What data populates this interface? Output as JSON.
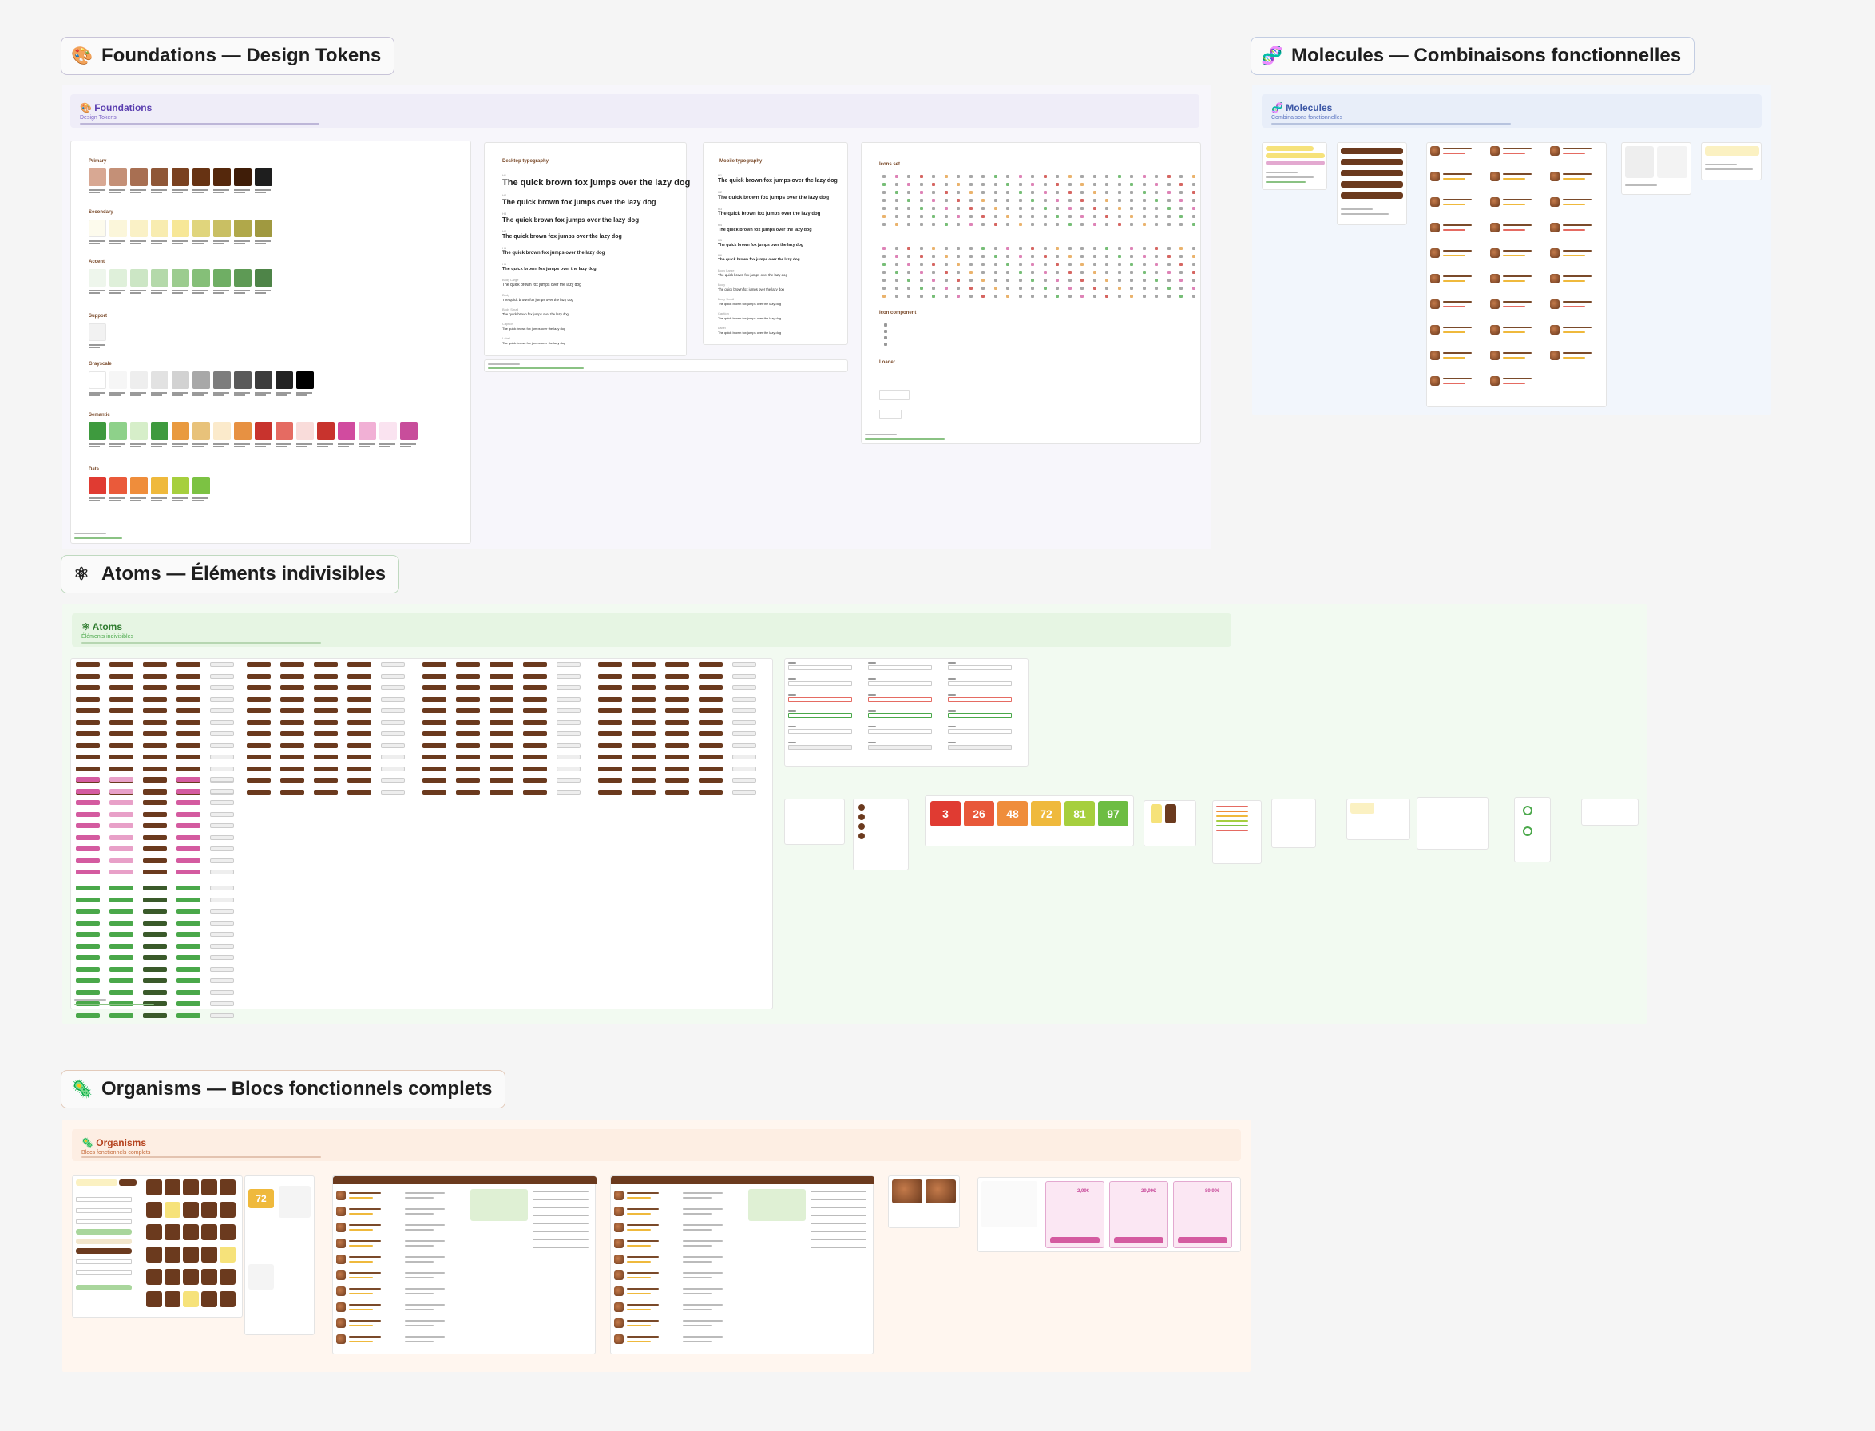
{
  "colors": {
    "brown_dark": "#5c2e10",
    "brown": "#7a4a2a",
    "pink": "#d45ba0",
    "green": "#4aa84a",
    "yellow": "#f6e27a"
  },
  "sections": {
    "foundations": {
      "emoji": "🎨",
      "title": "Foundations — Design Tokens"
    },
    "molecules": {
      "emoji": "🧬",
      "title": "Molecules — Combinaisons fonctionnelles"
    },
    "atoms": {
      "emoji": "⚛",
      "title": "Atoms — Éléments indivisibles"
    },
    "organisms": {
      "emoji": "🦠",
      "title": "Organisms — Blocs fonctionnels complets"
    }
  },
  "frames": {
    "foundations": {
      "emoji": "🎨",
      "heading": "Foundations",
      "subtitle": "Design Tokens"
    },
    "molecules": {
      "emoji": "🧬",
      "heading": "Molecules",
      "subtitle": "Combinaisons fonctionnelles"
    },
    "atoms": {
      "emoji": "⚛",
      "heading": "Atoms",
      "subtitle": "Éléments indivisibles"
    },
    "organisms": {
      "emoji": "🦠",
      "heading": "Organisms",
      "subtitle": "Blocs fonctionnels complets"
    }
  },
  "foundations": {
    "palette_groups": [
      {
        "label": "Primary",
        "swatches": [
          "#d8a893",
          "#c49077",
          "#a86f52",
          "#8f5737",
          "#7a4120",
          "#673313",
          "#55280c",
          "#3f1d08",
          "#1e1e1e"
        ]
      },
      {
        "label": "Secondary",
        "swatches": [
          "#fdfbed",
          "#fbf6da",
          "#faf1c6",
          "#f8ecb0",
          "#f7e797",
          "#e0d57c",
          "#c9bf63",
          "#b0a84a",
          "#a09940"
        ]
      },
      {
        "label": "Accent",
        "swatches": [
          "#eef6ec",
          "#dff0da",
          "#cce6c5",
          "#b4d9aa",
          "#9ccc8f",
          "#85bf78",
          "#6fae64",
          "#5e9a55",
          "#4e8448"
        ]
      },
      {
        "label": "Support",
        "swatches": [
          "#f2f2f2"
        ]
      },
      {
        "label": "Grayscale",
        "swatches": [
          "#ffffff",
          "#f6f6f6",
          "#eeeeee",
          "#e2e2e2",
          "#d2d2d2",
          "#a8a8a8",
          "#7d7d7d",
          "#5a5a5a",
          "#3c3c3c",
          "#222222",
          "#000000"
        ]
      },
      {
        "label": "Semantic",
        "swatches": [
          "#3e9a3e",
          "#8ed18a",
          "#d6eec9",
          "#3e9a3e",
          "#e99a3f",
          "#e8c27a",
          "#fbeacb",
          "#e79142",
          "#c8332d",
          "#e56b62",
          "#f9dcda",
          "#c8332d",
          "#d14b9f",
          "#f1b0d5",
          "#fae3f0",
          "#c84d9b"
        ]
      },
      {
        "label": "Data",
        "swatches": [
          "#e03b32",
          "#ea5a3a",
          "#ef8d3b",
          "#efb93c",
          "#a6cf3e",
          "#7cc243"
        ]
      }
    ],
    "desktop_typography": {
      "title": "Desktop typography",
      "sample": "The quick brown fox jumps over the lazy dog",
      "captions": [
        "H1",
        "H2",
        "H3",
        "H4",
        "H5",
        "H6",
        "Body Large",
        "Body",
        "Body Small",
        "Caption",
        "Label"
      ]
    },
    "mobile_typography": {
      "title": "Mobile typography",
      "sample": "The quick brown fox jumps over the lazy dog",
      "captions": [
        "H1",
        "H2",
        "H3",
        "H4",
        "H5",
        "H6",
        "Body Large",
        "Body",
        "Body Small",
        "Caption",
        "Label"
      ]
    },
    "icons": {
      "title": "Icons set",
      "component_title": "Icon component",
      "loader_title": "Loader"
    }
  },
  "atoms": {
    "stat_badges": [
      {
        "value": "3",
        "color": "#e03b32"
      },
      {
        "value": "26",
        "color": "#e8583a"
      },
      {
        "value": "48",
        "color": "#ef8d3b"
      },
      {
        "value": "72",
        "color": "#efb93c"
      },
      {
        "value": "81",
        "color": "#a6cf3e"
      },
      {
        "value": "97",
        "color": "#6dbd43"
      }
    ]
  },
  "organisms": {
    "score_card": {
      "value": "72"
    },
    "pricing_cards": [
      {
        "price": "2,99€"
      },
      {
        "price": "29,99€"
      },
      {
        "price": "89,99€"
      }
    ]
  }
}
